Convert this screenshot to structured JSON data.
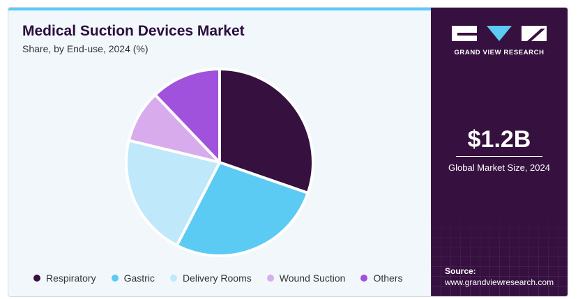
{
  "title": "Medical Suction Devices Market",
  "subtitle": "Share, by End-use, 2024 (%)",
  "chart_data": {
    "type": "pie",
    "categories": [
      "Respiratory",
      "Gastric",
      "Delivery Rooms",
      "Wound Suction",
      "Others"
    ],
    "values": [
      30,
      27,
      21,
      9,
      12
    ],
    "colors": [
      "#36113f",
      "#5ccbf4",
      "#bfe8fa",
      "#d8acec",
      "#a052dc"
    ],
    "legend_position": "bottom"
  },
  "sidebar": {
    "brand": "GRAND VIEW RESEARCH",
    "market_size": "$1.2B",
    "market_size_label": "Global Market Size, 2024",
    "source_label": "Source:",
    "source_url": "www.grandviewresearch.com"
  }
}
